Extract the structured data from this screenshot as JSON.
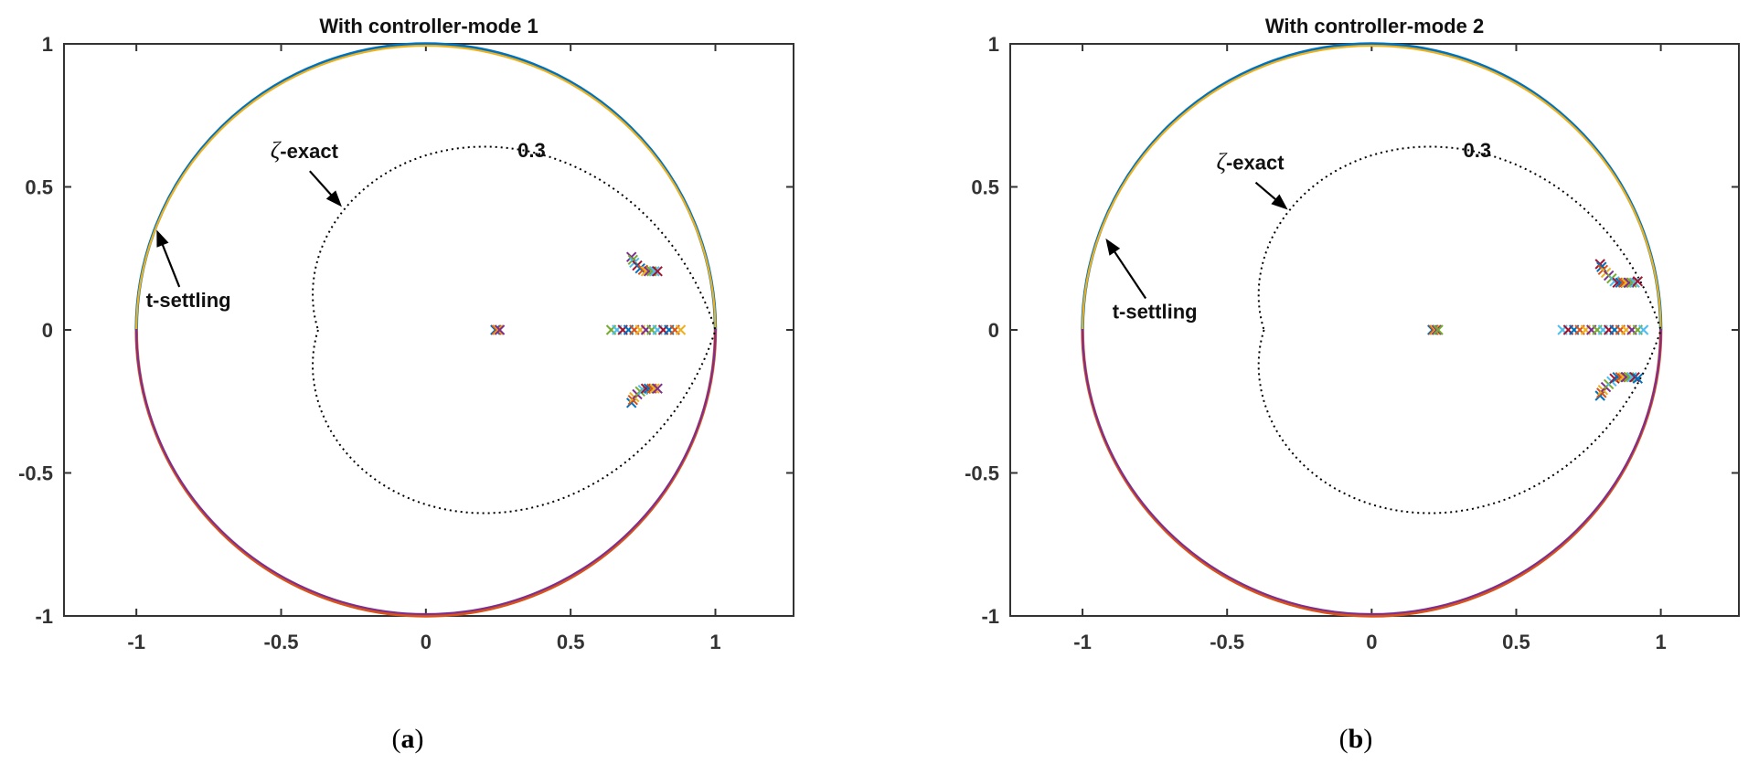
{
  "chart_data": [
    {
      "type": "scatter",
      "id": "a",
      "title": "With controller-mode 1",
      "caption": "a",
      "xlim": [
        -1.25,
        1.27
      ],
      "ylim": [
        -1,
        1
      ],
      "xticks": [
        -1,
        -0.5,
        0,
        0.5,
        1
      ],
      "yticks": [
        -1,
        -0.5,
        0,
        0.5,
        1
      ],
      "xticklabels": [
        "-1",
        "-0.5",
        "0",
        "0.5",
        "1"
      ],
      "yticklabels": [
        "-1",
        "-0.5",
        "0",
        "0.5",
        "1"
      ],
      "grid": false,
      "boundaries": [
        {
          "kind": "unit-circle-upper",
          "colors": [
            "#0072BD",
            "#EDB120"
          ]
        },
        {
          "kind": "unit-circle-lower",
          "colors": [
            "#D95319",
            "#7E2F8E"
          ]
        },
        {
          "kind": "damping-contour",
          "zeta": 0.3,
          "style": "dotted",
          "color": "#000000"
        }
      ],
      "annotations": [
        {
          "text": "0.3",
          "x": 0.365,
          "y": 0.63,
          "role": "zeta-value"
        },
        {
          "zeta_symbol": "ζ",
          "text": "-exact",
          "x": -0.42,
          "y": 0.6,
          "arrow_to": [
            -0.29,
            0.43
          ]
        },
        {
          "text": "t-settling",
          "x": -0.82,
          "y": 0.08,
          "arrow_to": [
            -0.93,
            0.35
          ]
        }
      ],
      "pole_clusters": [
        {
          "x": [
            0.24,
            0.245,
            0.25,
            0.255
          ],
          "y": [
            0,
            0,
            0,
            0
          ]
        },
        {
          "x": [
            0.64,
            0.66,
            0.68,
            0.7,
            0.72,
            0.74,
            0.76,
            0.78,
            0.8,
            0.82,
            0.84,
            0.86,
            0.88
          ],
          "y": [
            0,
            0,
            0,
            0,
            0,
            0,
            0,
            0,
            0,
            0,
            0,
            0,
            0
          ]
        },
        {
          "x": [
            0.71,
            0.715,
            0.72,
            0.73,
            0.74,
            0.75,
            0.76,
            0.77,
            0.78,
            0.79,
            0.8
          ],
          "y": [
            0.255,
            0.245,
            0.235,
            0.225,
            0.215,
            0.21,
            0.205,
            0.205,
            0.205,
            0.205,
            0.205
          ]
        },
        {
          "x": [
            0.71,
            0.715,
            0.72,
            0.73,
            0.74,
            0.75,
            0.76,
            0.77,
            0.78,
            0.79,
            0.8
          ],
          "y": [
            -0.255,
            -0.245,
            -0.235,
            -0.225,
            -0.215,
            -0.21,
            -0.205,
            -0.205,
            -0.205,
            -0.205,
            -0.205
          ]
        }
      ]
    },
    {
      "type": "scatter",
      "id": "b",
      "title": "With controller-mode 2",
      "caption": "b",
      "xlim": [
        -1.25,
        1.27
      ],
      "ylim": [
        -1,
        1
      ],
      "xticks": [
        -1,
        -0.5,
        0,
        0.5,
        1
      ],
      "yticks": [
        -1,
        -0.5,
        0,
        0.5,
        1
      ],
      "xticklabels": [
        "-1",
        "-0.5",
        "0",
        "0.5",
        "1"
      ],
      "yticklabels": [
        "-1",
        "-0.5",
        "0",
        "0.5",
        "1"
      ],
      "grid": false,
      "boundaries": [
        {
          "kind": "unit-circle-upper",
          "colors": [
            "#0072BD",
            "#EDB120"
          ]
        },
        {
          "kind": "unit-circle-lower",
          "colors": [
            "#D95319",
            "#7E2F8E"
          ]
        },
        {
          "kind": "damping-contour",
          "zeta": 0.3,
          "style": "dotted",
          "color": "#000000"
        }
      ],
      "annotations": [
        {
          "text": "0.3",
          "x": 0.365,
          "y": 0.63,
          "role": "zeta-value"
        },
        {
          "zeta_symbol": "ζ",
          "text": "-exact",
          "x": -0.42,
          "y": 0.56,
          "arrow_to": [
            -0.29,
            0.42
          ]
        },
        {
          "text": "t-settling",
          "x": -0.75,
          "y": 0.04,
          "arrow_to": [
            -0.92,
            0.32
          ]
        }
      ],
      "pole_clusters": [
        {
          "x": [
            0.21,
            0.215,
            0.22,
            0.225,
            0.23
          ],
          "y": [
            0,
            0,
            0,
            0,
            0
          ]
        },
        {
          "x": [
            0.66,
            0.68,
            0.7,
            0.72,
            0.74,
            0.76,
            0.78,
            0.8,
            0.82,
            0.84,
            0.86,
            0.88,
            0.9,
            0.92,
            0.94
          ],
          "y": [
            0,
            0,
            0,
            0,
            0,
            0,
            0,
            0,
            0,
            0,
            0,
            0,
            0,
            0,
            0
          ]
        },
        {
          "x": [
            0.79,
            0.795,
            0.8,
            0.81,
            0.82,
            0.83,
            0.84,
            0.85,
            0.86,
            0.87,
            0.88,
            0.89,
            0.9,
            0.91,
            0.92
          ],
          "y": [
            0.23,
            0.22,
            0.21,
            0.2,
            0.19,
            0.18,
            0.17,
            0.165,
            0.165,
            0.165,
            0.165,
            0.165,
            0.165,
            0.165,
            0.17
          ]
        },
        {
          "x": [
            0.79,
            0.795,
            0.8,
            0.81,
            0.82,
            0.83,
            0.84,
            0.85,
            0.86,
            0.87,
            0.88,
            0.89,
            0.9,
            0.91,
            0.92
          ],
          "y": [
            -0.23,
            -0.22,
            -0.21,
            -0.2,
            -0.19,
            -0.18,
            -0.17,
            -0.165,
            -0.165,
            -0.165,
            -0.165,
            -0.165,
            -0.165,
            -0.165,
            -0.17
          ]
        }
      ]
    }
  ],
  "marker_colors": [
    "#0072BD",
    "#D95319",
    "#EDB120",
    "#7E2F8E",
    "#77AC30",
    "#4DBEEE",
    "#A2142F"
  ]
}
